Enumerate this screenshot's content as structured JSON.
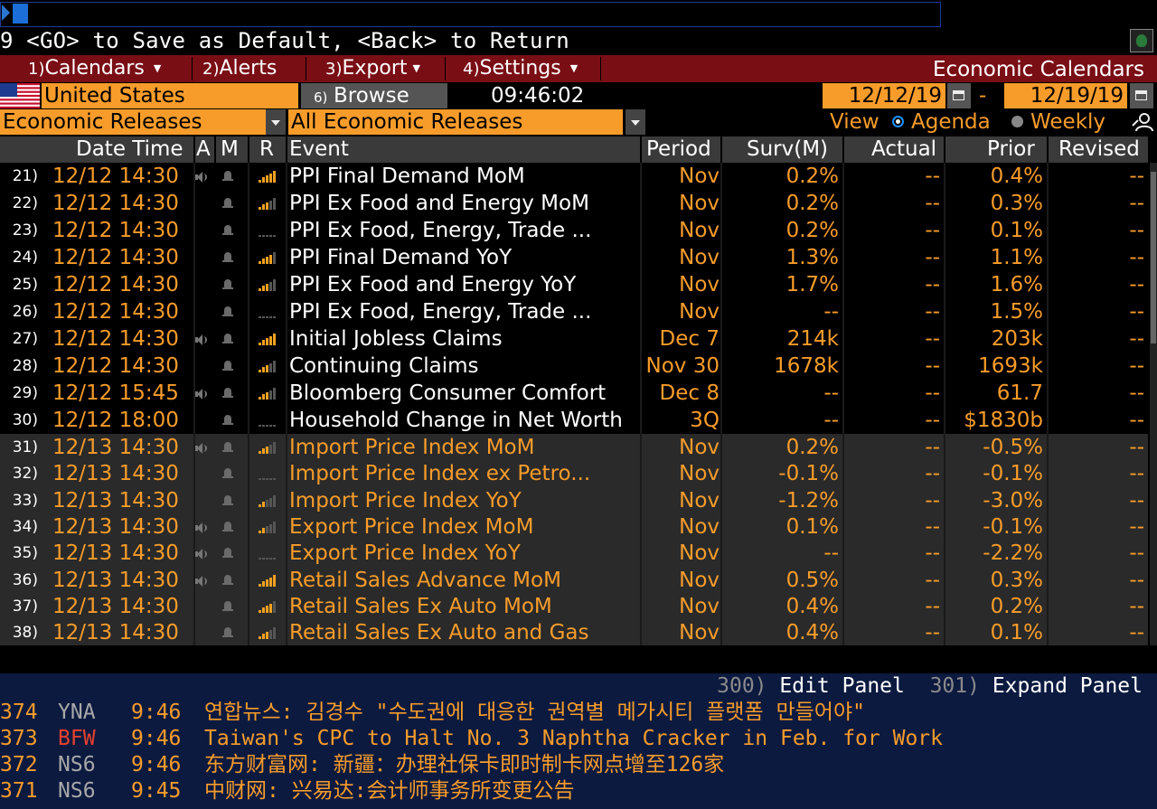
{
  "command_line": {
    "value": "",
    "hint": "9 <GO> to Save as Default, <Back> to Return"
  },
  "menu": {
    "items": [
      {
        "num": "1)",
        "label": "Calendars"
      },
      {
        "num": "2)",
        "label": "Alerts"
      },
      {
        "num": "3)",
        "label": "Export"
      },
      {
        "num": "4)",
        "label": "Settings"
      }
    ],
    "title": "Economic Calendars"
  },
  "filters": {
    "country": "United States",
    "browse_num": "6)",
    "browse_label": "Browse",
    "time": "09:46:02",
    "date_from": "12/12/19",
    "date_sep": "-",
    "date_to": "12/19/19",
    "category": "Economic Releases",
    "subcategory": "All Economic Releases",
    "view_label": "View",
    "view_agenda": "Agenda",
    "view_weekly": "Weekly",
    "view_selected": "Agenda"
  },
  "table": {
    "headers": {
      "datetime": "Date Time",
      "a": "A",
      "m": "M",
      "r": "R",
      "event": "Event",
      "period": "Period",
      "surv": "Surv(M)",
      "actual": "Actual",
      "prior": "Prior",
      "revised": "Revised"
    },
    "rows": [
      {
        "num": "21)",
        "datetime": "12/12 14:30",
        "audio": true,
        "rel": 5,
        "event": "PPI Final Demand MoM",
        "period": "Nov",
        "surv": "0.2%",
        "actual": "--",
        "prior": "0.4%",
        "revised": "--",
        "day": 1
      },
      {
        "num": "22)",
        "datetime": "12/12 14:30",
        "audio": false,
        "rel": 3,
        "event": "PPI Ex Food and Energy MoM",
        "period": "Nov",
        "surv": "0.2%",
        "actual": "--",
        "prior": "0.3%",
        "revised": "--",
        "day": 1
      },
      {
        "num": "23)",
        "datetime": "12/12 14:30",
        "audio": false,
        "rel": 0,
        "event": "PPI Ex Food, Energy, Trade ...",
        "period": "Nov",
        "surv": "0.2%",
        "actual": "--",
        "prior": "0.1%",
        "revised": "--",
        "day": 1
      },
      {
        "num": "24)",
        "datetime": "12/12 14:30",
        "audio": false,
        "rel": 4,
        "event": "PPI Final Demand YoY",
        "period": "Nov",
        "surv": "1.3%",
        "actual": "--",
        "prior": "1.1%",
        "revised": "--",
        "day": 1
      },
      {
        "num": "25)",
        "datetime": "12/12 14:30",
        "audio": false,
        "rel": 3,
        "event": "PPI Ex Food and Energy YoY",
        "period": "Nov",
        "surv": "1.7%",
        "actual": "--",
        "prior": "1.6%",
        "revised": "--",
        "day": 1
      },
      {
        "num": "26)",
        "datetime": "12/12 14:30",
        "audio": false,
        "rel": 0,
        "event": "PPI Ex Food, Energy, Trade ...",
        "period": "Nov",
        "surv": "--",
        "actual": "--",
        "prior": "1.5%",
        "revised": "--",
        "day": 1
      },
      {
        "num": "27)",
        "datetime": "12/12 14:30",
        "audio": true,
        "rel": 5,
        "event": "Initial Jobless Claims",
        "period": "Dec 7",
        "surv": "214k",
        "actual": "--",
        "prior": "203k",
        "revised": "--",
        "day": 1
      },
      {
        "num": "28)",
        "datetime": "12/12 14:30",
        "audio": false,
        "rel": 3,
        "event": "Continuing Claims",
        "period": "Nov 30",
        "surv": "1678k",
        "actual": "--",
        "prior": "1693k",
        "revised": "--",
        "day": 1
      },
      {
        "num": "29)",
        "datetime": "12/12 15:45",
        "audio": true,
        "rel": 3,
        "event": "Bloomberg Consumer Comfort",
        "period": "Dec 8",
        "surv": "--",
        "actual": "--",
        "prior": "61.7",
        "revised": "--",
        "day": 1
      },
      {
        "num": "30)",
        "datetime": "12/12 18:00",
        "audio": false,
        "rel": 0,
        "event": "Household Change in Net Worth",
        "period": "3Q",
        "surv": "--",
        "actual": "--",
        "prior": "$1830b",
        "revised": "--",
        "day": 1
      },
      {
        "num": "31)",
        "datetime": "12/13 14:30",
        "audio": true,
        "rel": 3,
        "event": "Import Price Index MoM",
        "period": "Nov",
        "surv": "0.2%",
        "actual": "--",
        "prior": "-0.5%",
        "revised": "--",
        "day": 2
      },
      {
        "num": "32)",
        "datetime": "12/13 14:30",
        "audio": false,
        "rel": 0,
        "event": "Import Price Index ex Petro...",
        "period": "Nov",
        "surv": "-0.1%",
        "actual": "--",
        "prior": "-0.1%",
        "revised": "--",
        "day": 2
      },
      {
        "num": "33)",
        "datetime": "12/13 14:30",
        "audio": false,
        "rel": 2,
        "event": "Import Price Index YoY",
        "period": "Nov",
        "surv": "-1.2%",
        "actual": "--",
        "prior": "-3.0%",
        "revised": "--",
        "day": 2
      },
      {
        "num": "34)",
        "datetime": "12/13 14:30",
        "audio": true,
        "rel": 2,
        "event": "Export Price Index MoM",
        "period": "Nov",
        "surv": "0.1%",
        "actual": "--",
        "prior": "-0.1%",
        "revised": "--",
        "day": 2
      },
      {
        "num": "35)",
        "datetime": "12/13 14:30",
        "audio": true,
        "rel": 0,
        "event": "Export Price Index YoY",
        "period": "Nov",
        "surv": "--",
        "actual": "--",
        "prior": "-2.2%",
        "revised": "--",
        "day": 2
      },
      {
        "num": "36)",
        "datetime": "12/13 14:30",
        "audio": true,
        "rel": 5,
        "event": "Retail Sales Advance MoM",
        "period": "Nov",
        "surv": "0.5%",
        "actual": "--",
        "prior": "0.3%",
        "revised": "--",
        "day": 2
      },
      {
        "num": "37)",
        "datetime": "12/13 14:30",
        "audio": false,
        "rel": 4,
        "event": "Retail Sales Ex Auto MoM",
        "period": "Nov",
        "surv": "0.4%",
        "actual": "--",
        "prior": "0.2%",
        "revised": "--",
        "day": 2
      },
      {
        "num": "38)",
        "datetime": "12/13 14:30",
        "audio": false,
        "rel": 3,
        "event": "Retail Sales Ex Auto and Gas",
        "period": "Nov",
        "surv": "0.4%",
        "actual": "--",
        "prior": "0.1%",
        "revised": "--",
        "day": 2
      }
    ]
  },
  "panel": {
    "edit_num": "300)",
    "edit_label": "Edit Panel",
    "expand_num": "301)",
    "expand_label": "Expand Panel"
  },
  "news": [
    {
      "num": "374",
      "source": "YNA",
      "source_color": "#a8a8a8",
      "time": "9:46",
      "headline": "연합뉴스: 김경수 \"수도권에 대응한 권역별 메가시티 플랫폼 만들어야\""
    },
    {
      "num": "373",
      "source": "BFW",
      "source_color": "#e8412c",
      "time": "9:46",
      "headline": "Taiwan's CPC to Halt No. 3 Naphtha Cracker in Feb. for Work"
    },
    {
      "num": "372",
      "source": "NS6",
      "source_color": "#a8a8a8",
      "time": "9:46",
      "headline": "东方财富网: 新疆：办理社保卡即时制卡网点增至126家"
    },
    {
      "num": "371",
      "source": "NS6",
      "source_color": "#a8a8a8",
      "time": "9:45",
      "headline": "中财网: 兴易达:会计师事务所变更公告"
    }
  ],
  "colors": {
    "accent": "#f79c2a",
    "menu_bar": "#7a0e15",
    "panel_bg": "#0c1a40",
    "header_bg": "#3a3a3a"
  },
  "icons": {
    "audio": "speaker-icon",
    "alert": "bell-icon",
    "relevance": "signal-bars-icon",
    "calendar": "calendar-icon",
    "people": "people-icon"
  }
}
